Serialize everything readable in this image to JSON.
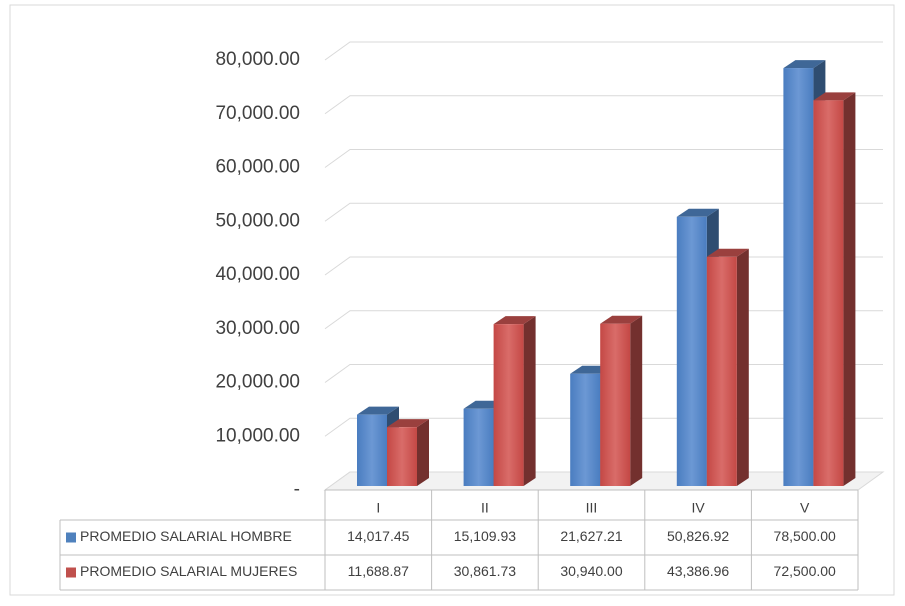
{
  "chart_data": {
    "type": "bar3d",
    "categories": [
      "I",
      "II",
      "III",
      "IV",
      "V"
    ],
    "series": [
      {
        "name": "PROMEDIO SALARIAL HOMBRE",
        "color": "#4f81bd",
        "values": [
          14017.45,
          15109.93,
          21627.21,
          50826.92,
          78500
        ],
        "value_labels": [
          "14,017.45",
          "15,109.93",
          "21,627.21",
          "50,826.92",
          "78,500.00"
        ]
      },
      {
        "name": "PROMEDIO SALARIAL MUJERES",
        "color": "#c0504d",
        "values": [
          11688.87,
          30861.73,
          30940,
          43386.96,
          72500
        ],
        "value_labels": [
          "11,688.87",
          "30,861.73",
          "30,940.00",
          "43,386.96",
          "72,500.00"
        ]
      }
    ],
    "ylim": [
      0,
      80000
    ],
    "yticks": [
      {
        "value": 0,
        "label": "-"
      },
      {
        "value": 10000,
        "label": "10,000.00"
      },
      {
        "value": 20000,
        "label": "20,000.00"
      },
      {
        "value": 30000,
        "label": "30,000.00"
      },
      {
        "value": 40000,
        "label": "40,000.00"
      },
      {
        "value": 50000,
        "label": "50,000.00"
      },
      {
        "value": 60000,
        "label": "60,000.00"
      },
      {
        "value": 70000,
        "label": "70,000.00"
      },
      {
        "value": 80000,
        "label": "80,000.00"
      }
    ],
    "grid": true,
    "legend": "table"
  }
}
